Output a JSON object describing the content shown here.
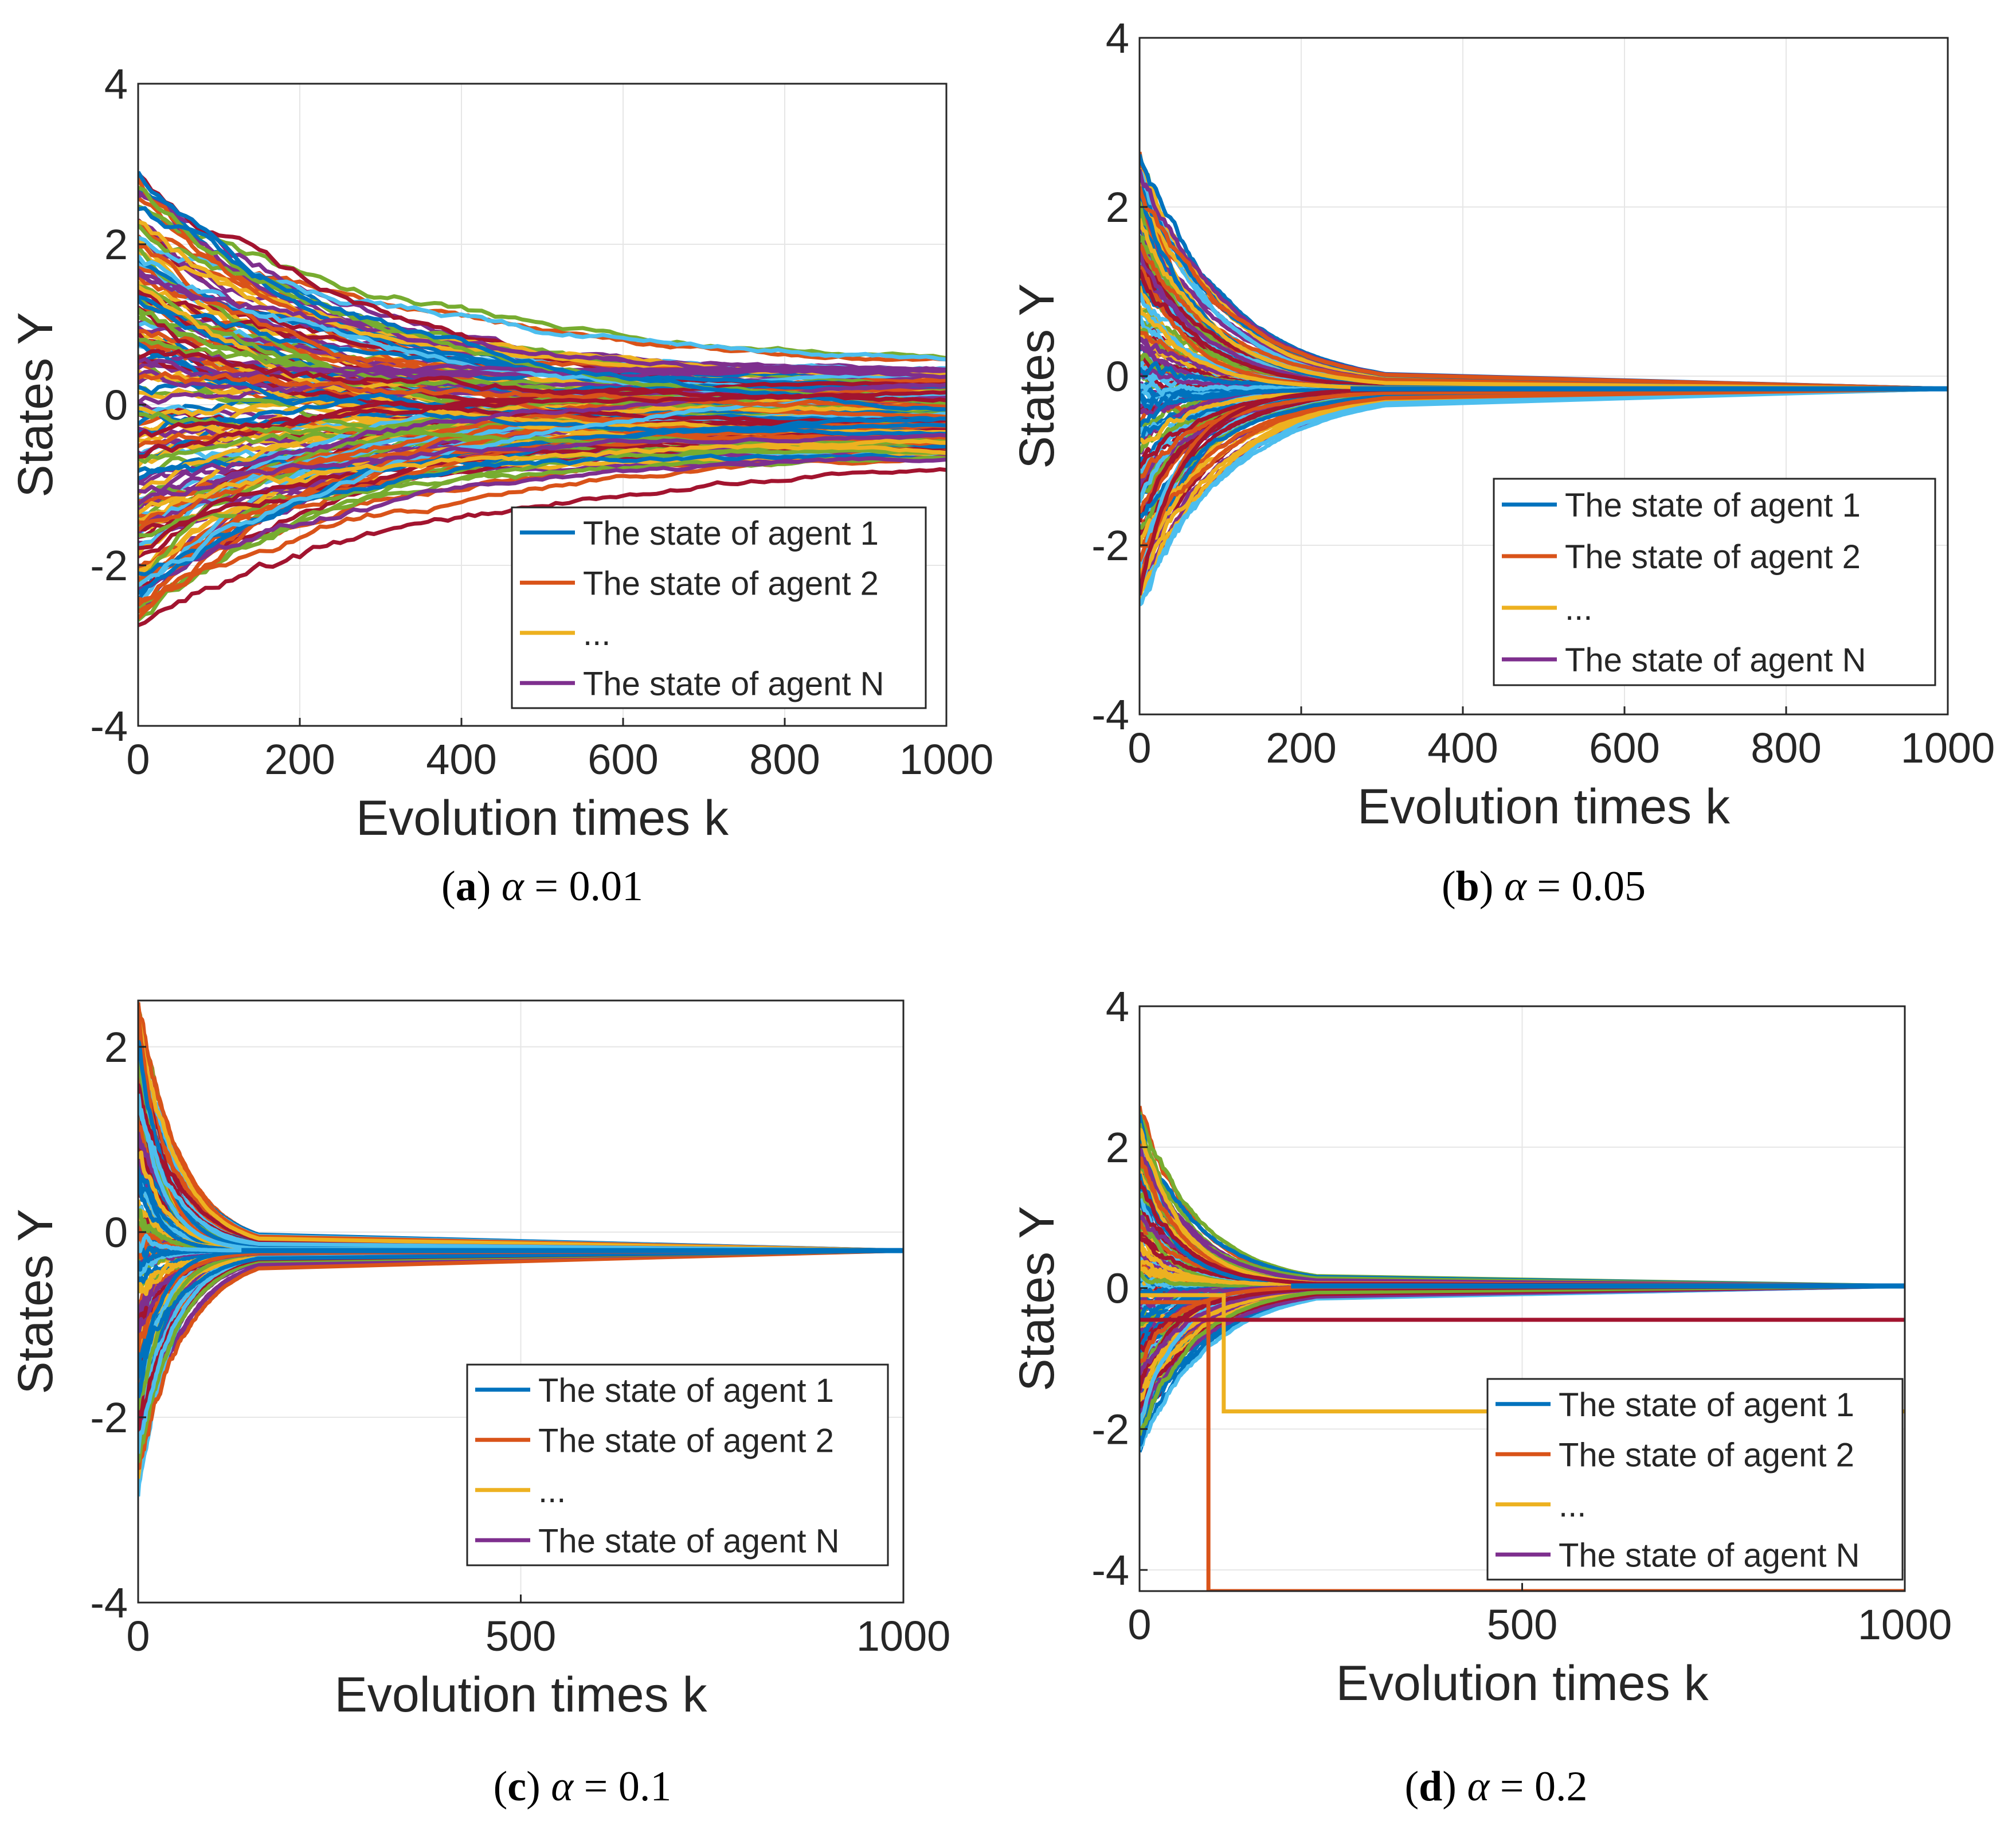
{
  "figure": {
    "panels": [
      {
        "id": "a",
        "caption_letter": "a",
        "caption_paren_open": "(",
        "caption_paren_close": ")",
        "caption_alpha": "α",
        "caption_equals": "=",
        "caption_value": "0.01"
      },
      {
        "id": "b",
        "caption_letter": "b",
        "caption_paren_open": "(",
        "caption_paren_close": ")",
        "caption_alpha": "α",
        "caption_equals": "=",
        "caption_value": "0.05"
      },
      {
        "id": "c",
        "caption_letter": "c",
        "caption_paren_open": "(",
        "caption_paren_close": ")",
        "caption_alpha": "α",
        "caption_equals": "=",
        "caption_value": "0.1"
      },
      {
        "id": "d",
        "caption_letter": "d",
        "caption_paren_open": "(",
        "caption_paren_close": ")",
        "caption_alpha": "α",
        "caption_equals": "=",
        "caption_value": "0.2"
      }
    ]
  },
  "colors": {
    "agent1": "#0072BD",
    "agent2": "#D95319",
    "agent3": "#EDB120",
    "agentN": "#7E2F8E",
    "extra1": "#77AC30",
    "extra2": "#4DBEEE",
    "extra3": "#A2142F",
    "grid": "#e6e6e6",
    "axis": "#262626"
  },
  "chart_data": [
    {
      "type": "line",
      "title": "",
      "xlabel": "Evolution times k",
      "ylabel": "States Y",
      "xlim": [
        0,
        1000
      ],
      "ylim": [
        -4,
        4
      ],
      "xticks": [
        0,
        200,
        400,
        600,
        800,
        1000
      ],
      "yticks": [
        -4,
        -2,
        0,
        2,
        4
      ],
      "xtick_labels": [
        "0",
        "200",
        "400",
        "600",
        "800",
        "1000"
      ],
      "ytick_labels": [
        "-4",
        "-2",
        "0",
        "2",
        "4"
      ],
      "grid": true,
      "legend_position": "bottom-right",
      "legend": [
        {
          "label": "The state of agent 1",
          "color": "#0072BD"
        },
        {
          "label": "The state of agent 2",
          "color": "#D95319"
        },
        {
          "label": "...",
          "color": "#EDB120"
        },
        {
          "label": "The state of agent N",
          "color": "#7E2F8E"
        }
      ],
      "ensemble": {
        "initial_range": [
          -2.7,
          2.9
        ],
        "consensus_value": -0.15,
        "final_spread": [
          -0.7,
          0.45
        ],
        "convergence_time": 1000,
        "num_trajectories": 160,
        "seed": 11
      },
      "special_series": []
    },
    {
      "type": "line",
      "title": "",
      "xlabel": "Evolution times k",
      "ylabel": "States Y",
      "xlim": [
        0,
        1000
      ],
      "ylim": [
        -4,
        4
      ],
      "xticks": [
        0,
        200,
        400,
        600,
        800,
        1000
      ],
      "yticks": [
        -4,
        -2,
        0,
        2,
        4
      ],
      "xtick_labels": [
        "0",
        "200",
        "400",
        "600",
        "800",
        "1000"
      ],
      "ytick_labels": [
        "-4",
        "-2",
        "0",
        "2",
        "4"
      ],
      "grid": true,
      "legend_position": "bottom-right",
      "legend": [
        {
          "label": "The state of agent 1",
          "color": "#0072BD"
        },
        {
          "label": "The state of agent 2",
          "color": "#D95319"
        },
        {
          "label": "...",
          "color": "#EDB120"
        },
        {
          "label": "The state of agent N",
          "color": "#7E2F8E"
        }
      ],
      "ensemble": {
        "initial_range": [
          -2.7,
          2.7
        ],
        "consensus_value": -0.15,
        "final_spread": [
          -0.15,
          -0.15
        ],
        "convergence_time": 290,
        "num_trajectories": 160,
        "seed": 23
      },
      "special_series": []
    },
    {
      "type": "line",
      "title": "",
      "xlabel": "Evolution times k",
      "ylabel": "States Y",
      "xlim": [
        0,
        1000
      ],
      "ylim": [
        -4,
        2.5
      ],
      "xticks": [
        0,
        500,
        1000
      ],
      "yticks": [
        -4,
        -2,
        0,
        2
      ],
      "xtick_labels": [
        "0",
        "500",
        "1000"
      ],
      "ytick_labels": [
        "-4",
        "-2",
        "0",
        "2"
      ],
      "grid": true,
      "legend_position": "bottom-right",
      "legend": [
        {
          "label": "The state of agent 1",
          "color": "#0072BD"
        },
        {
          "label": "The state of agent 2",
          "color": "#D95319"
        },
        {
          "label": "...",
          "color": "#EDB120"
        },
        {
          "label": "The state of agent N",
          "color": "#7E2F8E"
        }
      ],
      "ensemble": {
        "initial_range": [
          -2.8,
          2.5
        ],
        "consensus_value": -0.2,
        "final_spread": [
          -0.2,
          -0.2
        ],
        "convergence_time": 150,
        "num_trajectories": 160,
        "seed": 37
      },
      "special_series": []
    },
    {
      "type": "line",
      "title": "",
      "xlabel": "Evolution times k",
      "ylabel": "States Y",
      "xlim": [
        0,
        1000
      ],
      "ylim": [
        -4.3,
        4
      ],
      "xticks": [
        0,
        500,
        1000
      ],
      "yticks": [
        -4,
        -2,
        0,
        2,
        4
      ],
      "xtick_labels": [
        "0",
        "500",
        "1000"
      ],
      "ytick_labels": [
        "-4",
        "-2",
        "0",
        "2",
        "4"
      ],
      "grid": true,
      "legend_position": "bottom-right",
      "legend": [
        {
          "label": "The state of agent 1",
          "color": "#0072BD"
        },
        {
          "label": "The state of agent 2",
          "color": "#D95319"
        },
        {
          "label": "...",
          "color": "#EDB120"
        },
        {
          "label": "The state of agent N",
          "color": "#7E2F8E"
        }
      ],
      "ensemble": {
        "initial_range": [
          -2.4,
          2.6
        ],
        "consensus_value": 0.03,
        "final_spread": [
          0.03,
          0.03
        ],
        "convergence_time": 220,
        "num_trajectories": 150,
        "seed": 53
      },
      "special_series": [
        {
          "name": "dropout agent (level -4.3)",
          "color": "#D95319",
          "drop_k": 90,
          "start_y": -0.2,
          "level": -4.3
        },
        {
          "name": "dropout agent (level -1.75)",
          "color": "#EDB120",
          "drop_k": 110,
          "start_y": -0.1,
          "level": -1.75
        },
        {
          "name": "dropout agent (level -0.45)",
          "color": "#A2142F",
          "drop_k": 60,
          "start_y": -0.45,
          "level": -0.45
        }
      ]
    }
  ]
}
